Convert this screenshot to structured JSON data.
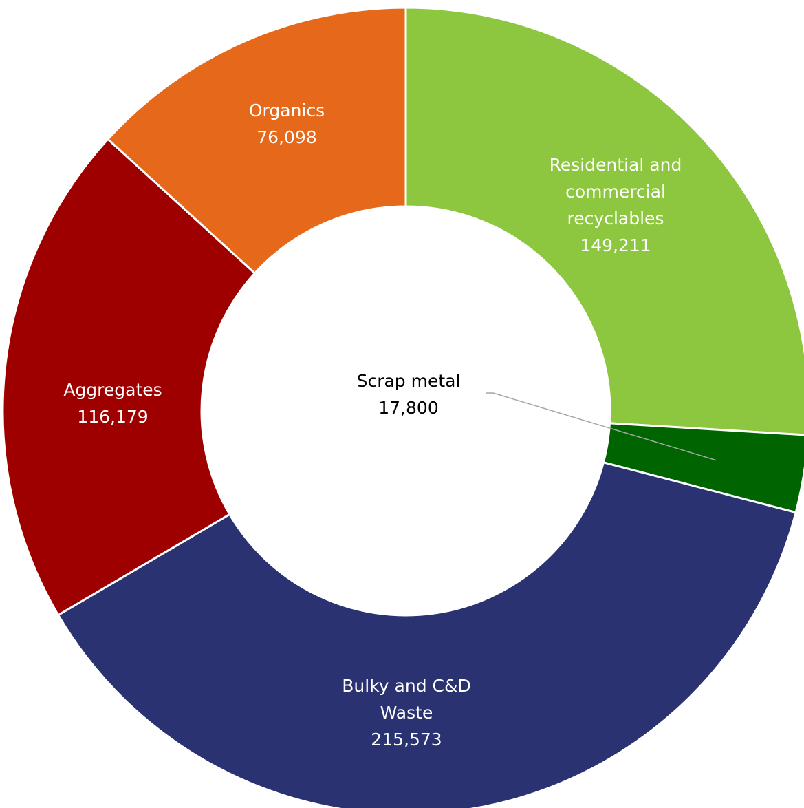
{
  "chart_data": {
    "type": "pie",
    "donut": true,
    "slices": [
      {
        "label_lines": [
          "Residential and",
          "commercial",
          "recyclables"
        ],
        "value": 149211,
        "value_text": "149,211",
        "color": "#8dc63f",
        "label_color": "#ffffff"
      },
      {
        "label_lines": [
          "Scrap metal"
        ],
        "value": 17800,
        "value_text": "17,800",
        "color": "#006400",
        "label_color": "#000000"
      },
      {
        "label_lines": [
          "Bulky and C&D",
          "Waste"
        ],
        "value": 215573,
        "value_text": "215,573",
        "color": "#2a3272",
        "label_color": "#ffffff"
      },
      {
        "label_lines": [
          "Aggregates"
        ],
        "value": 116179,
        "value_text": "116,179",
        "color": "#9e0000",
        "label_color": "#ffffff"
      },
      {
        "label_lines": [
          "Organics"
        ],
        "value": 76098,
        "value_text": "76,098",
        "color": "#e6691b",
        "label_color": "#ffffff"
      }
    ]
  }
}
